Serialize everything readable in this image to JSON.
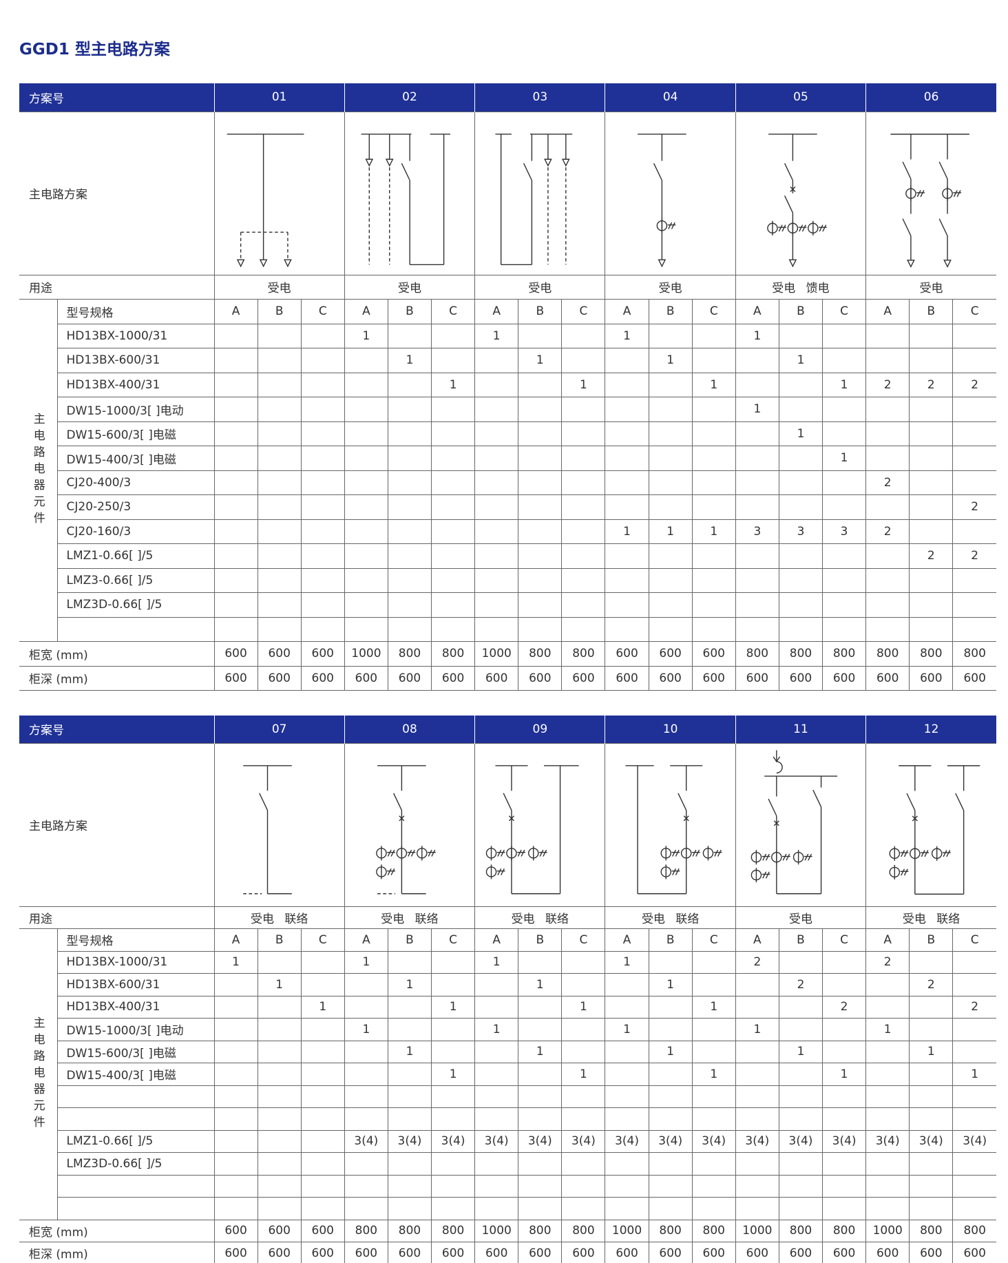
{
  "title": "GGD1 型主电路方案",
  "tables": [
    {
      "header_label": "方案号",
      "schemes": [
        "01",
        "02",
        "03",
        "04",
        "05",
        "06"
      ],
      "diagram_label": "主电路方案",
      "usage_label": "用途",
      "usages": [
        "受电",
        "受电",
        "受电",
        "受电",
        "受电 馈电",
        "受电"
      ],
      "group_label": "主电路电器元件",
      "spec_label": "型号规格",
      "columns": [
        "A",
        "B",
        "C"
      ],
      "rows": [
        {
          "name": "HD13BX-1000/31",
          "values": [
            null,
            null,
            null,
            1,
            null,
            null,
            1,
            null,
            null,
            1,
            null,
            null,
            1,
            null,
            null,
            null,
            null,
            null
          ]
        },
        {
          "name": "HD13BX-600/31",
          "values": [
            null,
            null,
            null,
            null,
            1,
            null,
            null,
            1,
            null,
            null,
            1,
            null,
            null,
            1,
            null,
            null,
            null,
            null
          ]
        },
        {
          "name": "HD13BX-400/31",
          "values": [
            null,
            null,
            null,
            null,
            null,
            1,
            null,
            null,
            1,
            null,
            null,
            1,
            null,
            null,
            1,
            2,
            2,
            2
          ]
        },
        {
          "name": "DW15-1000/3[ ]电动",
          "values": [
            null,
            null,
            null,
            null,
            null,
            null,
            null,
            null,
            null,
            null,
            null,
            null,
            1,
            null,
            null,
            null,
            null,
            null
          ]
        },
        {
          "name": "DW15-600/3[ ]电磁",
          "values": [
            null,
            null,
            null,
            null,
            null,
            null,
            null,
            null,
            null,
            null,
            null,
            null,
            null,
            1,
            null,
            null,
            null,
            null
          ]
        },
        {
          "name": "DW15-400/3[ ]电磁",
          "values": [
            null,
            null,
            null,
            null,
            null,
            null,
            null,
            null,
            null,
            null,
            null,
            null,
            null,
            null,
            1,
            null,
            null,
            null
          ]
        },
        {
          "name": "CJ20-400/3",
          "values": [
            null,
            null,
            null,
            null,
            null,
            null,
            null,
            null,
            null,
            null,
            null,
            null,
            null,
            null,
            null,
            2,
            null,
            null
          ]
        },
        {
          "name": "CJ20-250/3",
          "values": [
            null,
            null,
            null,
            null,
            null,
            null,
            null,
            null,
            null,
            null,
            null,
            null,
            null,
            null,
            null,
            null,
            null,
            2
          ]
        },
        {
          "name": "CJ20-160/3",
          "values": [
            null,
            null,
            null,
            null,
            null,
            null,
            null,
            null,
            null,
            1,
            1,
            1,
            3,
            3,
            3,
            2,
            null,
            null
          ]
        },
        {
          "name": "LMZ1-0.66[ ]/5",
          "values": [
            null,
            null,
            null,
            null,
            null,
            null,
            null,
            null,
            null,
            null,
            null,
            null,
            null,
            null,
            null,
            null,
            2,
            2
          ]
        },
        {
          "name": "LMZ3-0.66[ ]/5",
          "values": [
            null,
            null,
            null,
            null,
            null,
            null,
            null,
            null,
            null,
            null,
            null,
            null,
            null,
            null,
            null,
            null,
            null,
            null
          ]
        },
        {
          "name": "LMZ3D-0.66[ ]/5",
          "values": [
            null,
            null,
            null,
            null,
            null,
            null,
            null,
            null,
            null,
            null,
            null,
            null,
            null,
            null,
            null,
            null,
            null,
            null
          ]
        },
        {
          "name": null,
          "values": [
            null,
            null,
            null,
            null,
            null,
            null,
            null,
            null,
            null,
            null,
            null,
            null,
            null,
            null,
            null,
            null,
            null,
            null
          ]
        }
      ],
      "width_label": "柜宽 (mm)",
      "widths": [
        600,
        600,
        600,
        1000,
        800,
        800,
        1000,
        800,
        800,
        600,
        600,
        600,
        800,
        800,
        800,
        800,
        800,
        800
      ],
      "depth_label": "柜深 (mm)",
      "depths": [
        600,
        600,
        600,
        600,
        600,
        600,
        600,
        600,
        600,
        600,
        600,
        600,
        600,
        600,
        600,
        600,
        600,
        600
      ]
    },
    {
      "header_label": "方案号",
      "schemes": [
        "07",
        "08",
        "09",
        "10",
        "11",
        "12"
      ],
      "diagram_label": "主电路方案",
      "usage_label": "用途",
      "usages": [
        "受电 联络",
        "受电 联络",
        "受电 联络",
        "受电 联络",
        "受电",
        "受电 联络"
      ],
      "group_label": "主电路电器元件",
      "spec_label": "型号规格",
      "columns": [
        "A",
        "B",
        "C"
      ],
      "rows": [
        {
          "name": "HD13BX-1000/31",
          "values": [
            1,
            null,
            null,
            1,
            null,
            null,
            1,
            null,
            null,
            1,
            null,
            null,
            2,
            null,
            null,
            2,
            null,
            null
          ]
        },
        {
          "name": "HD13BX-600/31",
          "values": [
            null,
            1,
            null,
            null,
            1,
            null,
            null,
            1,
            null,
            null,
            1,
            null,
            null,
            2,
            null,
            null,
            2,
            null
          ]
        },
        {
          "name": "HD13BX-400/31",
          "values": [
            null,
            null,
            1,
            null,
            null,
            1,
            null,
            null,
            1,
            null,
            null,
            1,
            null,
            null,
            2,
            null,
            null,
            2
          ]
        },
        {
          "name": "DW15-1000/3[ ]电动",
          "values": [
            null,
            null,
            null,
            1,
            null,
            null,
            1,
            null,
            null,
            1,
            null,
            null,
            1,
            null,
            null,
            1,
            null,
            null
          ]
        },
        {
          "name": "DW15-600/3[ ]电磁",
          "values": [
            null,
            null,
            null,
            null,
            1,
            null,
            null,
            1,
            null,
            null,
            1,
            null,
            null,
            1,
            null,
            null,
            1,
            null
          ]
        },
        {
          "name": "DW15-400/3[ ]电磁",
          "values": [
            null,
            null,
            null,
            null,
            null,
            1,
            null,
            null,
            1,
            null,
            null,
            1,
            null,
            null,
            1,
            null,
            null,
            1
          ]
        },
        {
          "name": null,
          "values": [
            null,
            null,
            null,
            null,
            null,
            null,
            null,
            null,
            null,
            null,
            null,
            null,
            null,
            null,
            null,
            null,
            null,
            null
          ]
        },
        {
          "name": null,
          "values": [
            null,
            null,
            null,
            null,
            null,
            null,
            null,
            null,
            null,
            null,
            null,
            null,
            null,
            null,
            null,
            null,
            null,
            null
          ]
        },
        {
          "name": "LMZ1-0.66[ ]/5",
          "values": [
            null,
            null,
            null,
            "3(4)",
            "3(4)",
            "3(4)",
            "3(4)",
            "3(4)",
            "3(4)",
            "3(4)",
            "3(4)",
            "3(4)",
            "3(4)",
            "3(4)",
            "3(4)",
            "3(4)",
            "3(4)",
            "3(4)"
          ]
        },
        {
          "name": "LMZ3D-0.66[ ]/5",
          "values": [
            null,
            null,
            null,
            null,
            null,
            null,
            null,
            null,
            null,
            null,
            null,
            null,
            null,
            null,
            null,
            null,
            null,
            null
          ]
        },
        {
          "name": null,
          "values": [
            null,
            null,
            null,
            null,
            null,
            null,
            null,
            null,
            null,
            null,
            null,
            null,
            null,
            null,
            null,
            null,
            null,
            null
          ]
        },
        {
          "name": null,
          "values": [
            null,
            null,
            null,
            null,
            null,
            null,
            null,
            null,
            null,
            null,
            null,
            null,
            null,
            null,
            null,
            null,
            null,
            null
          ]
        }
      ],
      "width_label": "柜宽 (mm)",
      "widths": [
        600,
        600,
        600,
        800,
        800,
        800,
        1000,
        800,
        800,
        1000,
        800,
        800,
        1000,
        800,
        800,
        1000,
        800,
        800
      ],
      "depth_label": "柜深 (mm)",
      "depths": [
        600,
        600,
        600,
        600,
        600,
        600,
        600,
        600,
        600,
        600,
        600,
        600,
        600,
        600,
        600,
        600,
        600,
        600
      ]
    }
  ]
}
